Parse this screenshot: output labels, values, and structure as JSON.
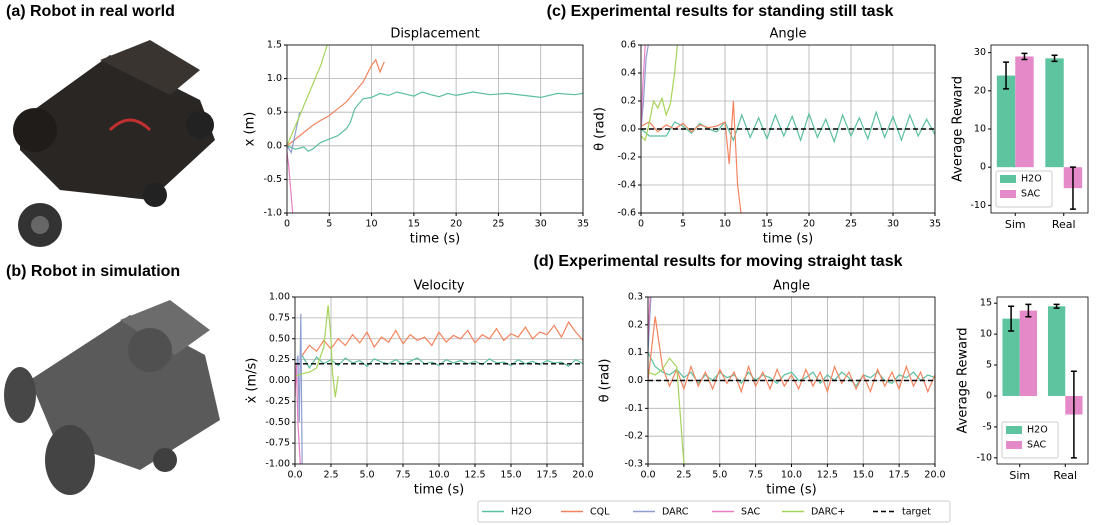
{
  "panels": {
    "a": "(a) Robot in real world",
    "b": "(b) Robot in simulation",
    "c": "(c) Experimental results for standing still task",
    "d": "(d) Experimental results for moving straight task"
  },
  "chart_data": [
    {
      "type": "line",
      "title": "Displacement",
      "xlabel": "time (s)",
      "ylabel": "x (m)",
      "grid": true,
      "xlim": [
        0,
        35
      ],
      "xticks": [
        0,
        5,
        10,
        15,
        20,
        25,
        30,
        35
      ],
      "ylim": [
        -1,
        1.5
      ],
      "yticks": [
        {
          "value": -1,
          "label": "-1.0"
        },
        -0.5,
        {
          "value": 0,
          "label": "0.0"
        },
        0.5,
        {
          "value": 1,
          "label": "1.0"
        },
        1.5
      ],
      "series": [
        {
          "name": "H2O",
          "color": "#5bbf9f",
          "x": [
            0,
            1,
            2,
            2.5,
            3,
            4,
            5,
            6,
            7,
            7.5,
            8,
            9,
            10,
            11,
            12,
            13,
            14,
            15,
            16,
            17,
            18,
            19,
            20,
            22,
            24,
            26,
            28,
            30,
            32,
            34,
            35
          ],
          "values": [
            0,
            -0.05,
            -0.02,
            -0.08,
            -0.05,
            0.05,
            0.1,
            0.15,
            0.25,
            0.35,
            0.55,
            0.7,
            0.72,
            0.78,
            0.75,
            0.8,
            0.77,
            0.74,
            0.8,
            0.76,
            0.73,
            0.78,
            0.75,
            0.8,
            0.76,
            0.78,
            0.75,
            0.72,
            0.78,
            0.76,
            0.78
          ]
        },
        {
          "name": "CQL",
          "color": "#f4845f",
          "x": [
            0,
            1,
            2,
            3,
            4,
            5,
            6,
            7,
            8,
            9,
            10,
            10.5,
            11,
            11.5
          ],
          "values": [
            0,
            0.1,
            0.2,
            0.3,
            0.38,
            0.45,
            0.55,
            0.65,
            0.8,
            0.95,
            1.2,
            1.28,
            1.1,
            1.25
          ]
        },
        {
          "name": "DARC",
          "color": "#8e9ed0",
          "x": [
            0,
            0.5,
            1,
            1.5
          ],
          "values": [
            0,
            -0.1,
            0.2,
            0.5
          ]
        },
        {
          "name": "SAC",
          "color": "#e97fc2",
          "x": [
            0,
            0.2,
            0.4,
            0.6,
            0.8
          ],
          "values": [
            -0.1,
            -0.3,
            -0.6,
            -0.9,
            -1.2
          ]
        },
        {
          "name": "DARC+",
          "color": "#a6d45a",
          "x": [
            0,
            1,
            2,
            3,
            4,
            5
          ],
          "values": [
            0,
            0.3,
            0.6,
            0.9,
            1.2,
            1.6
          ]
        }
      ]
    },
    {
      "type": "line",
      "title": "Angle",
      "xlabel": "time (s)",
      "ylabel": "θ (rad)",
      "grid": true,
      "xlim": [
        0,
        35
      ],
      "xticks": [
        0,
        5,
        10,
        15,
        20,
        25,
        30,
        35
      ],
      "ylim": [
        -0.6,
        0.6
      ],
      "yticks": [
        -0.6,
        -0.4,
        -0.2,
        {
          "value": 0,
          "label": "0.0"
        },
        0.2,
        0.4,
        0.6
      ],
      "series": [
        {
          "name": "H2O",
          "color": "#5bbf9f",
          "x": [
            0,
            1,
            2,
            3,
            4,
            5,
            6,
            7,
            8,
            9,
            10,
            11,
            12,
            13,
            14,
            15,
            16,
            17,
            18,
            19,
            20,
            21,
            22,
            23,
            24,
            25,
            26,
            27,
            28,
            29,
            30,
            31,
            32,
            33,
            34,
            35
          ],
          "values": [
            0,
            -0.05,
            -0.05,
            -0.05,
            0.05,
            0.02,
            -0.03,
            0.04,
            0,
            -0.02,
            0.05,
            -0.08,
            0.1,
            -0.06,
            0.08,
            -0.07,
            0.1,
            -0.05,
            0.09,
            -0.08,
            0.11,
            -0.06,
            0.07,
            -0.09,
            0.1,
            -0.05,
            0.08,
            -0.07,
            0.12,
            -0.06,
            0.09,
            -0.08,
            0.1,
            -0.05,
            0.07,
            -0.04
          ]
        },
        {
          "name": "CQL",
          "color": "#f4845f",
          "x": [
            0,
            1,
            2,
            3,
            4,
            5,
            6,
            7,
            8,
            9,
            10,
            10.5,
            11,
            11.5,
            12
          ],
          "values": [
            0.02,
            0.05,
            -0.02,
            0.03,
            0,
            0.04,
            -0.02,
            0.03,
            0.01,
            0.02,
            0.05,
            -0.25,
            0.2,
            -0.4,
            -0.65
          ]
        },
        {
          "name": "DARC",
          "color": "#8e9ed0",
          "x": [
            0,
            0.3,
            0.6,
            1
          ],
          "values": [
            0,
            0.2,
            0.5,
            0.65
          ]
        },
        {
          "name": "SAC",
          "color": "#e97fc2",
          "x": [
            0,
            0.2,
            0.4,
            0.6
          ],
          "values": [
            0,
            0.3,
            0.5,
            0.7
          ]
        },
        {
          "name": "DARC+",
          "color": "#a6d45a",
          "x": [
            0,
            0.5,
            1,
            1.5,
            2,
            2.5,
            3,
            3.5,
            4,
            4.5
          ],
          "values": [
            -0.05,
            -0.08,
            0.05,
            0.2,
            0.15,
            0.22,
            0.1,
            0.18,
            0.4,
            0.7
          ]
        },
        {
          "name": "target",
          "color": "#000000",
          "linestyle": "dashed",
          "x": [
            0,
            35
          ],
          "values": [
            0,
            0
          ]
        }
      ]
    },
    {
      "type": "bar",
      "ylabel": "Average Reward",
      "grid": false,
      "legend": "lower left",
      "categories": [
        "Sim",
        "Real"
      ],
      "ylim": [
        -12,
        32
      ],
      "yticks": [
        -10,
        0,
        10,
        20,
        30
      ],
      "series": [
        {
          "name": "H2O",
          "color": "#5ec4a0",
          "values": [
            24,
            28.5
          ],
          "errors": [
            3.5,
            0.8
          ]
        },
        {
          "name": "SAC",
          "color": "#e58ac8",
          "values": [
            29,
            -5.5
          ],
          "errors": [
            0.8,
            5.5
          ]
        }
      ]
    },
    {
      "type": "line",
      "title": "Velocity",
      "xlabel": "time (s)",
      "ylabel": "ẋ (m/s)",
      "grid": true,
      "xlim": [
        0,
        20
      ],
      "xticks": [
        {
          "value": 0,
          "label": "0.0"
        },
        2.5,
        {
          "value": 5,
          "label": "5.0"
        },
        7.5,
        {
          "value": 10,
          "label": "10.0"
        },
        12.5,
        {
          "value": 15,
          "label": "15.0"
        },
        17.5,
        {
          "value": 20,
          "label": "20.0"
        }
      ],
      "ylim": [
        -1,
        1
      ],
      "yticks": [
        {
          "value": -1,
          "label": "-1.00"
        },
        -0.75,
        {
          "value": -0.5,
          "label": "-0.50"
        },
        -0.25,
        {
          "value": 0,
          "label": "0.00"
        },
        0.25,
        {
          "value": 0.5,
          "label": "0.50"
        },
        0.75,
        {
          "value": 1,
          "label": "1.00"
        }
      ],
      "series": [
        {
          "name": "H2O",
          "color": "#5bbf9f",
          "x": [
            0.5,
            1,
            1.5,
            2,
            2.5,
            3,
            3.5,
            4,
            4.5,
            5,
            5.5,
            6,
            6.5,
            7,
            7.5,
            8,
            8.5,
            9,
            9.5,
            10,
            10.5,
            11,
            11.5,
            12,
            12.5,
            13,
            13.5,
            14,
            14.5,
            15,
            15.5,
            16,
            16.5,
            17,
            17.5,
            18,
            18.5,
            19,
            19.5,
            20
          ],
          "values": [
            0.3,
            0.15,
            0.28,
            0.2,
            0.25,
            0.18,
            0.27,
            0.21,
            0.24,
            0.17,
            0.26,
            0.22,
            0.2,
            0.25,
            0.19,
            0.23,
            0.27,
            0.2,
            0.22,
            0.18,
            0.25,
            0.21,
            0.24,
            0.2,
            0.23,
            0.19,
            0.26,
            0.21,
            0.22,
            0.18,
            0.25,
            0.2,
            0.23,
            0.19,
            0.24,
            0.21,
            0.22,
            0.17,
            0.25,
            0.2
          ]
        },
        {
          "name": "CQL",
          "color": "#f4845f",
          "x": [
            0.5,
            1,
            1.5,
            2,
            2.5,
            3,
            3.5,
            4,
            4.5,
            5,
            5.5,
            6,
            6.5,
            7,
            7.5,
            8,
            8.5,
            9,
            9.5,
            10,
            10.5,
            11,
            11.5,
            12,
            12.5,
            13,
            13.5,
            14,
            14.5,
            15,
            15.5,
            16,
            16.5,
            17,
            17.5,
            18,
            18.5,
            19,
            19.5,
            20
          ],
          "values": [
            0.3,
            0.42,
            0.35,
            0.48,
            0.38,
            0.5,
            0.42,
            0.55,
            0.45,
            0.58,
            0.4,
            0.52,
            0.46,
            0.6,
            0.44,
            0.55,
            0.48,
            0.52,
            0.42,
            0.58,
            0.46,
            0.54,
            0.5,
            0.6,
            0.45,
            0.55,
            0.5,
            0.62,
            0.48,
            0.56,
            0.52,
            0.64,
            0.5,
            0.58,
            0.55,
            0.66,
            0.52,
            0.7,
            0.58,
            0.48
          ]
        },
        {
          "name": "DARC",
          "color": "#8e9ed0",
          "x": [
            0,
            0.2,
            0.3,
            0.4,
            0.5
          ],
          "values": [
            0,
            0.3,
            -0.5,
            0.8,
            -1.1
          ]
        },
        {
          "name": "SAC",
          "color": "#e97fc2",
          "x": [
            0,
            0.1,
            0.2,
            0.3,
            0.4
          ],
          "values": [
            -0.2,
            0.2,
            -0.5,
            -0.8,
            -1.1
          ]
        },
        {
          "name": "DARC+",
          "color": "#a6d45a",
          "x": [
            0,
            0.5,
            1,
            1.5,
            2,
            2.3,
            2.5,
            2.6,
            2.8,
            3
          ],
          "values": [
            0.05,
            0.08,
            0.1,
            0.15,
            0.4,
            0.9,
            0.5,
            0.1,
            -0.2,
            0.05
          ]
        },
        {
          "name": "target",
          "color": "#000000",
          "linestyle": "dashed",
          "x": [
            0,
            20
          ],
          "values": [
            0.2,
            0.2
          ]
        }
      ]
    },
    {
      "type": "line",
      "title": "Angle",
      "xlabel": "time (s)",
      "ylabel": "θ (rad)",
      "grid": true,
      "xlim": [
        0,
        20
      ],
      "xticks": [
        {
          "value": 0,
          "label": "0.0"
        },
        2.5,
        {
          "value": 5,
          "label": "5.0"
        },
        7.5,
        {
          "value": 10,
          "label": "10.0"
        },
        12.5,
        {
          "value": 15,
          "label": "15.0"
        },
        17.5,
        {
          "value": 20,
          "label": "20.0"
        }
      ],
      "ylim": [
        -0.3,
        0.3
      ],
      "yticks": [
        -0.3,
        -0.2,
        -0.1,
        {
          "value": 0,
          "label": "0.0"
        },
        0.1,
        0.2,
        0.3
      ],
      "series": [
        {
          "name": "H2O",
          "color": "#5bbf9f",
          "x": [
            0,
            0.5,
            1,
            1.5,
            2,
            2.5,
            3,
            3.5,
            4,
            4.5,
            5,
            5.5,
            6,
            6.5,
            7,
            7.5,
            8,
            8.5,
            9,
            9.5,
            10,
            10.5,
            11,
            11.5,
            12,
            12.5,
            13,
            13.5,
            14,
            14.5,
            15,
            15.5,
            16,
            16.5,
            17,
            17.5,
            18,
            18.5,
            19,
            19.5,
            20
          ],
          "values": [
            0.1,
            0.05,
            0.03,
            0.02,
            0.04,
            0.01,
            0.03,
            -0.01,
            0.02,
            0,
            0.03,
            0.01,
            0.02,
            -0.01,
            0.03,
            0,
            0.02,
            0.01,
            -0.01,
            0.02,
            0.03,
            0,
            0.01,
            0.03,
            -0.01,
            0.02,
            0,
            0.03,
            0.01,
            -0.02,
            0.02,
            0.01,
            0.03,
            0,
            -0.01,
            0.02,
            0.01,
            0.03,
            0,
            0.02,
            0.01
          ]
        },
        {
          "name": "CQL",
          "color": "#f4845f",
          "x": [
            0,
            0.5,
            1,
            1.5,
            2,
            2.5,
            3,
            3.5,
            4,
            4.5,
            5,
            5.5,
            6,
            6.5,
            7,
            7.5,
            8,
            8.5,
            9,
            9.5,
            10,
            10.5,
            11,
            11.5,
            12,
            12.5,
            13,
            13.5,
            14,
            14.5,
            15,
            15.5,
            16,
            16.5,
            17,
            17.5,
            18,
            18.5,
            19,
            19.5,
            20
          ],
          "values": [
            0,
            0.23,
            0.05,
            -0.02,
            0.04,
            -0.03,
            0.05,
            -0.02,
            0.03,
            -0.03,
            0.04,
            -0.01,
            0.03,
            -0.04,
            0.05,
            -0.02,
            0.03,
            -0.03,
            0.04,
            -0.02,
            0.02,
            -0.03,
            0.04,
            -0.02,
            0.03,
            -0.04,
            0.05,
            -0.01,
            0.03,
            -0.03,
            0.02,
            -0.04,
            0.04,
            -0.02,
            0.03,
            -0.03,
            0.05,
            -0.02,
            0.03,
            -0.04,
            0.02
          ]
        },
        {
          "name": "DARC",
          "color": "#8e9ed0",
          "x": [
            0,
            0.1,
            0.2
          ],
          "values": [
            0.1,
            0.2,
            0.3
          ]
        },
        {
          "name": "SAC",
          "color": "#e97fc2",
          "x": [
            0,
            0.1,
            0.2
          ],
          "values": [
            0.15,
            0.25,
            0.35
          ]
        },
        {
          "name": "DARC+",
          "color": "#a6d45a",
          "x": [
            0,
            0.5,
            1,
            1.5,
            2,
            2.5
          ],
          "values": [
            0.03,
            0.02,
            0.04,
            0.08,
            0.05,
            -0.3
          ]
        },
        {
          "name": "target",
          "color": "#000000",
          "linestyle": "dashed",
          "x": [
            0,
            20
          ],
          "values": [
            0,
            0
          ]
        }
      ]
    },
    {
      "type": "bar",
      "ylabel": "Average Reward",
      "grid": false,
      "legend": "lower left",
      "categories": [
        "Sim",
        "Real"
      ],
      "ylim": [
        -11,
        16
      ],
      "yticks": [
        -10,
        -5,
        0,
        5,
        10,
        15
      ],
      "series": [
        {
          "name": "H2O",
          "color": "#5ec4a0",
          "values": [
            12.5,
            14.5
          ],
          "errors": [
            2,
            0.3
          ]
        },
        {
          "name": "SAC",
          "color": "#e58ac8",
          "values": [
            13.8,
            -3
          ],
          "errors": [
            1,
            7
          ]
        }
      ]
    }
  ]
}
